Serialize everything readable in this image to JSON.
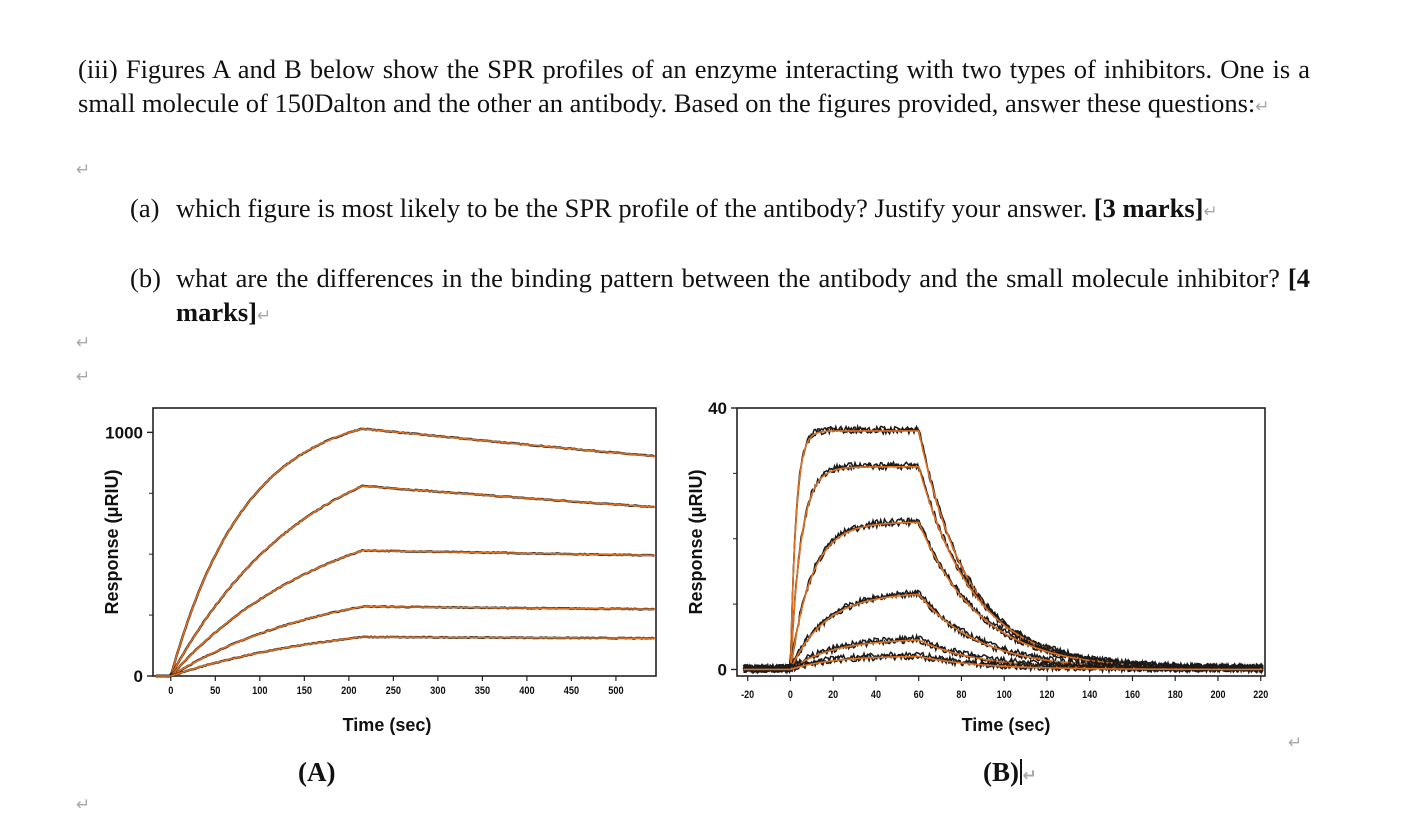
{
  "question": {
    "intro": "(iii) Figures A and B below show the SPR profiles of an enzyme interacting with two types of inhibitors. One is a small molecule of 150Dalton and the other an antibody. Based on the figures provided, answer these questions:",
    "parts": [
      {
        "label": "(a)",
        "text": "which figure is most likely to be the SPR profile of the antibody? Justify your answer.",
        "marks": "[3 marks]"
      },
      {
        "label": "(b)",
        "text": "what are the differences in the binding pattern between the antibody and the small molecule inhibitor?",
        "marks": "[4 marks]"
      }
    ],
    "paragraph_mark": "↵"
  },
  "figures": {
    "captions": [
      "(A)",
      "(B)"
    ]
  },
  "colors": {
    "data_trace": "#1a1a1a",
    "fit_trace": "#e07020",
    "axis": "#222222"
  },
  "chart_data": [
    {
      "type": "line",
      "caption": "(A)",
      "xlabel": "Time (sec)",
      "ylabel": "Response (μRIU)",
      "xlim": [
        -20,
        545
      ],
      "ylim": [
        0,
        1100
      ],
      "x_ticks": [
        0,
        50,
        100,
        150,
        200,
        250,
        300,
        350,
        400,
        450,
        500
      ],
      "y_tick_labels": [
        {
          "value": 0,
          "label": "0"
        },
        {
          "value": 1000,
          "label": "1000"
        }
      ],
      "injection_end": 215,
      "series": [
        {
          "plateau": 1015,
          "k_on": 0.012,
          "k_off": 0.00036
        },
        {
          "plateau": 780,
          "k_on": 0.0065,
          "k_off": 0.00036
        },
        {
          "plateau": 515,
          "k_on": 0.0055,
          "k_off": 0.00012
        },
        {
          "plateau": 285,
          "k_on": 0.0055,
          "k_off": 0.00012
        },
        {
          "plateau": 160,
          "k_on": 0.005,
          "k_off": 0.0001
        }
      ]
    },
    {
      "type": "line",
      "caption": "(B)",
      "xlabel": "Time (sec)",
      "ylabel": "Response (μRIU)",
      "xlim": [
        -25,
        222
      ],
      "ylim": [
        -1,
        40
      ],
      "x_ticks": [
        -20,
        0,
        20,
        40,
        60,
        80,
        100,
        120,
        140,
        160,
        180,
        200,
        220
      ],
      "y_tick_labels": [
        {
          "value": 0,
          "label": "0"
        },
        {
          "value": 40,
          "label": "40"
        }
      ],
      "injection_end": 60,
      "series": [
        {
          "plateau": 36.5,
          "k_on": 0.38,
          "k_off": 0.042
        },
        {
          "plateau": 31,
          "k_on": 0.2,
          "k_off": 0.038
        },
        {
          "plateau": 22.5,
          "k_on": 0.1,
          "k_off": 0.035
        },
        {
          "plateau": 11.5,
          "k_on": 0.06,
          "k_off": 0.035
        },
        {
          "plateau": 4.5,
          "k_on": 0.05,
          "k_off": 0.035
        },
        {
          "plateau": 2,
          "k_on": 0.05,
          "k_off": 0.035
        }
      ]
    }
  ]
}
